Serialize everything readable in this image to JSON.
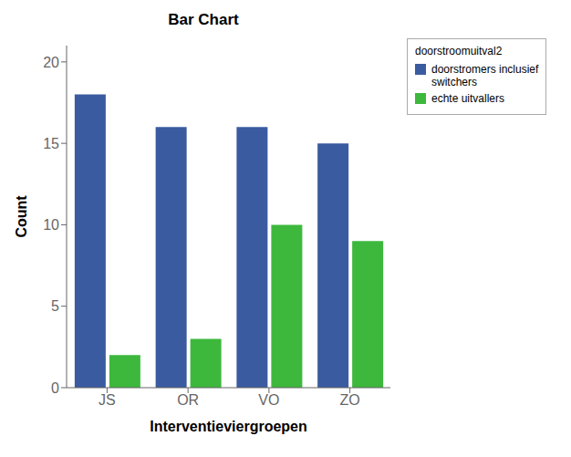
{
  "chart_data": {
    "type": "bar",
    "title": "Bar Chart",
    "xlabel": "Interventieviergroepen",
    "ylabel": "Count",
    "categories": [
      "JS",
      "OR",
      "VO",
      "ZO"
    ],
    "series": [
      {
        "name": "doorstromers inclusief\nswitchers",
        "color": "#3a5ba0",
        "values": [
          18,
          16,
          16,
          15
        ]
      },
      {
        "name": "echte uitvallers",
        "color": "#3db83d",
        "values": [
          2,
          3,
          10,
          9
        ]
      }
    ],
    "legend_title": "doorstroomuitval2",
    "legend": "right",
    "ylim": [
      0,
      21
    ],
    "yticks": [
      0,
      5,
      10,
      15,
      20
    ],
    "grid": false
  }
}
